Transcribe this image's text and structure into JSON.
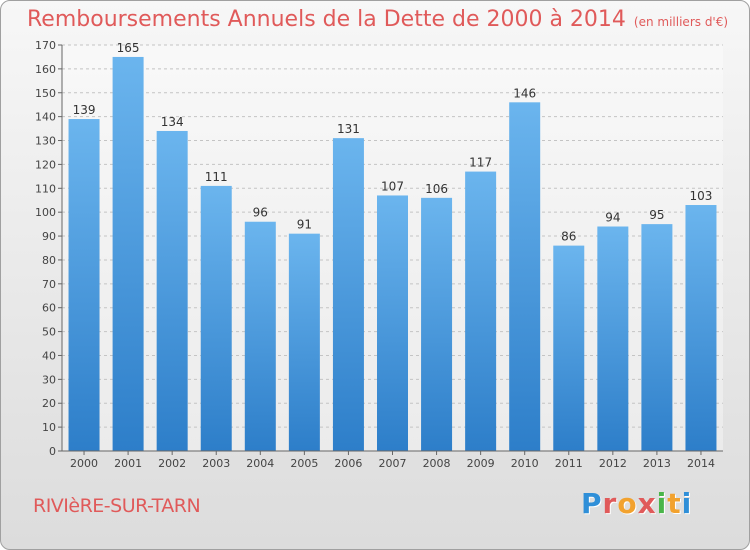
{
  "title": "Remboursements Annuels de la Dette de 2000 à 2014",
  "subtitle": "(en milliers d'€)",
  "commune": "RIVIèRE-SUR-TARN",
  "logo": [
    "P",
    "r",
    "o",
    "x",
    "i",
    "t",
    "i"
  ],
  "colors": {
    "bar_top": "#6bb5ee",
    "bar_bottom": "#2d7ec9",
    "title": "#e05a5a",
    "logo": [
      "#2f8fd8",
      "#e05a5a",
      "#f2a22e",
      "#e05a5a",
      "#49b549",
      "#f2a22e",
      "#2f8fd8"
    ]
  },
  "chart_data": {
    "type": "bar",
    "categories": [
      "2000",
      "2001",
      "2002",
      "2003",
      "2004",
      "2005",
      "2006",
      "2007",
      "2008",
      "2009",
      "2010",
      "2011",
      "2012",
      "2013",
      "2014"
    ],
    "values": [
      139,
      165,
      134,
      111,
      96,
      91,
      131,
      107,
      106,
      117,
      146,
      86,
      94,
      95,
      103
    ],
    "ylim": [
      0,
      170
    ],
    "yticks": [
      0,
      10,
      20,
      30,
      40,
      50,
      60,
      70,
      80,
      90,
      100,
      110,
      120,
      130,
      140,
      150,
      160,
      170
    ],
    "grid": true
  }
}
